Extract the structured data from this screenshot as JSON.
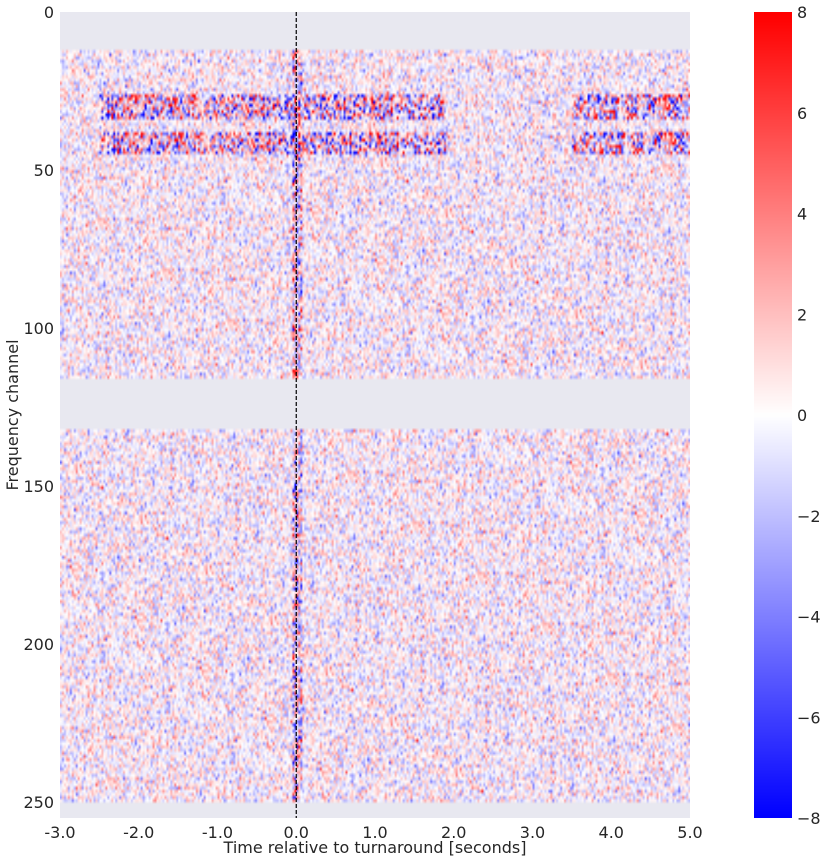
{
  "chart_data": {
    "type": "heatmap",
    "title": "",
    "xlabel": "Time relative to turnaround [seconds]",
    "ylabel": "Frequency channel",
    "xlim": [
      -3.0,
      5.0
    ],
    "ylim": [
      255,
      0
    ],
    "x_ticks": [
      -3.0,
      -2.0,
      -1.0,
      0.0,
      1.0,
      2.0,
      3.0,
      4.0,
      5.0
    ],
    "x_tick_labels": [
      "-3.0",
      "-2.0",
      "-1.0",
      "0.0",
      "1.0",
      "2.0",
      "3.0",
      "4.0",
      "5.0"
    ],
    "y_ticks": [
      0,
      50,
      100,
      150,
      200,
      250
    ],
    "y_tick_labels": [
      "0",
      "50",
      "100",
      "150",
      "200",
      "250"
    ],
    "turnaround_marker": {
      "x": 0.0,
      "style": "dashed",
      "color": "#000000"
    },
    "masked_channel_ranges": [
      [
        0,
        11
      ],
      [
        116,
        131
      ],
      [
        250,
        255
      ]
    ],
    "bright_channel_ranges": [
      {
        "channels": [
          26,
          33
        ],
        "x_range": [
          -2.5,
          1.9
        ],
        "x_range_2": [
          3.5,
          5.0
        ]
      },
      {
        "channels": [
          38,
          44
        ],
        "x_range": [
          -2.5,
          1.9
        ],
        "x_range_2": [
          3.5,
          5.0
        ]
      }
    ],
    "colorbar": {
      "cmap": "bwr",
      "vmin": -8,
      "vmax": 8,
      "ticks": [
        -8,
        -6,
        -4,
        -2,
        0,
        2,
        4,
        6,
        8
      ],
      "tick_labels": [
        "−8",
        "−6",
        "−4",
        "−2",
        "0",
        "2",
        "4",
        "6",
        "8"
      ]
    },
    "colors": {
      "masked": "#e8e8f0",
      "axes_bg": "#eaeaf2",
      "negative": "#0000ff",
      "positive": "#ff0000",
      "zero": "#ffffff"
    }
  }
}
